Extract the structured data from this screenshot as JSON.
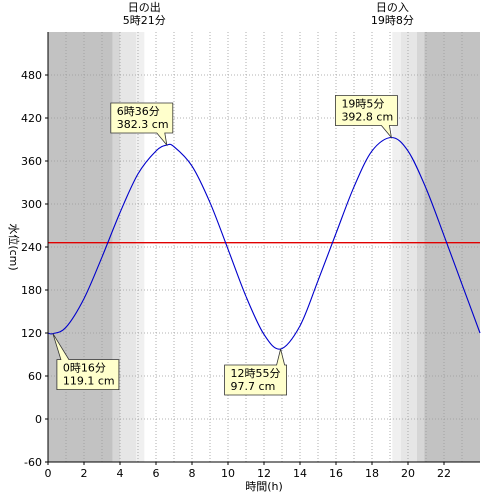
{
  "chart_data": {
    "type": "line",
    "xlabel": "時間(h)",
    "ylabel": "水位(cm)",
    "xlim": [
      0,
      24
    ],
    "ylim": [
      -60,
      540
    ],
    "x_ticks": [
      0,
      2,
      4,
      6,
      8,
      10,
      12,
      14,
      16,
      18,
      20,
      22
    ],
    "y_ticks": [
      -60,
      0,
      60,
      120,
      180,
      240,
      300,
      360,
      420,
      480
    ],
    "grid": true,
    "reference_line": {
      "y": 246,
      "color": "#e00000"
    },
    "series": [
      {
        "color": "#0000cc",
        "x": [
          0,
          0.27,
          1,
          2,
          3,
          4,
          5,
          6,
          6.6,
          7,
          8,
          9,
          10,
          11,
          12,
          12.92,
          14,
          15,
          16,
          17,
          18,
          19.08,
          20,
          21,
          22,
          23,
          24
        ],
        "y": [
          120,
          119.1,
          128,
          168,
          226,
          288,
          342,
          374,
          382.3,
          380,
          353,
          302,
          237,
          171,
          118,
          97.7,
          130,
          193,
          259,
          324,
          374,
          392.8,
          374,
          322,
          256,
          188,
          120
        ]
      }
    ],
    "bands": [
      {
        "from": 0,
        "to": 3.6,
        "shade": "dark"
      },
      {
        "from": 3.6,
        "to": 4.0,
        "shade": "mid"
      },
      {
        "from": 4.0,
        "to": 4.9,
        "shade": "light"
      },
      {
        "from": 4.9,
        "to": 5.35,
        "shade": "lighter"
      },
      {
        "from": 19.13,
        "to": 19.6,
        "shade": "lighter"
      },
      {
        "from": 19.6,
        "to": 20.5,
        "shade": "light"
      },
      {
        "from": 20.5,
        "to": 20.9,
        "shade": "mid"
      },
      {
        "from": 20.9,
        "to": 24,
        "shade": "dark"
      }
    ],
    "annotations": [
      {
        "x": 0.27,
        "y": 119.1,
        "line1": "0時16分",
        "line2": "119.1 cm"
      },
      {
        "x": 6.6,
        "y": 382.3,
        "line1": "6時36分",
        "line2": "382.3 cm"
      },
      {
        "x": 12.92,
        "y": 97.7,
        "line1": "12時55分",
        "line2": "97.7 cm"
      },
      {
        "x": 19.08,
        "y": 392.8,
        "line1": "19時5分",
        "line2": "392.8 cm"
      }
    ],
    "sun_labels": [
      {
        "x": 5.35,
        "line1": "日の出",
        "line2": "5時21分"
      },
      {
        "x": 19.13,
        "line1": "日の入",
        "line2": "19時8分"
      }
    ],
    "colors": {
      "dark": "#c2c2c2",
      "mid": "#d6d6d6",
      "light": "#e6e6e6",
      "lighter": "#f0f0f0",
      "annotation_fill": "#ffffcc"
    }
  }
}
